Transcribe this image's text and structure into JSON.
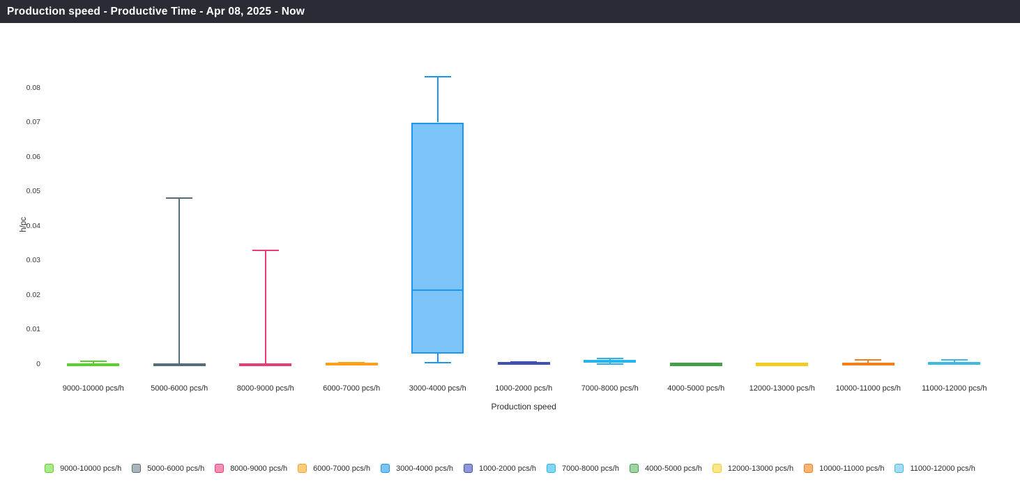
{
  "header": {
    "title": "Production speed - Productive Time - Apr 08, 2025 - Now",
    "bg_color": "#2b2b35",
    "text_color": "#ffffff"
  },
  "chart_data": {
    "type": "boxplot",
    "title": "",
    "xlabel": "Production speed",
    "ylabel": "h/pc",
    "ylim": [
      0,
      0.088
    ],
    "grid": false,
    "legend_position": "bottom",
    "yticks": [
      {
        "v": 0,
        "label": "0"
      },
      {
        "v": 0.01,
        "label": "0.01"
      },
      {
        "v": 0.02,
        "label": "0.02"
      },
      {
        "v": 0.03,
        "label": "0.03"
      },
      {
        "v": 0.04,
        "label": "0.04"
      },
      {
        "v": 0.05,
        "label": "0.05"
      },
      {
        "v": 0.06,
        "label": "0.06"
      },
      {
        "v": 0.07,
        "label": "0.07"
      },
      {
        "v": 0.08,
        "label": "0.08"
      }
    ],
    "categories": [
      "9000-10000 pcs/h",
      "5000-6000 pcs/h",
      "8000-9000 pcs/h",
      "6000-7000 pcs/h",
      "3000-4000 pcs/h",
      "1000-2000 pcs/h",
      "7000-8000 pcs/h",
      "4000-5000 pcs/h",
      "12000-13000 pcs/h",
      "10000-11000 pcs/h",
      "11000-12000 pcs/h"
    ],
    "series": [
      {
        "name": "9000-10000 pcs/h",
        "color": "#58d02c",
        "fill": "#abe98b",
        "low": 0,
        "q1": 0,
        "median": 0.0001,
        "q3": 0.0003,
        "high": 0.0008
      },
      {
        "name": "5000-6000 pcs/h",
        "color": "#546e7a",
        "fill": "#aab6bc",
        "low": 0,
        "q1": 0,
        "median": 0.0001,
        "q3": 0.0002,
        "high": 0.048
      },
      {
        "name": "8000-9000 pcs/h",
        "color": "#e93d75",
        "fill": "#f490b5",
        "low": 0,
        "q1": 0,
        "median": 0.0001,
        "q3": 0.0002,
        "high": 0.033
      },
      {
        "name": "6000-7000 pcs/h",
        "color": "#faa019",
        "fill": "#fcce7e",
        "low": 0.0001,
        "q1": 0.0002,
        "median": 0.0003,
        "q3": 0.0004,
        "high": 0.0005
      },
      {
        "name": "3000-4000 pcs/h",
        "color": "#1c96ee",
        "fill": "#7cc4f8",
        "low": 0.0005,
        "q1": 0.003,
        "median": 0.0215,
        "q3": 0.07,
        "high": 0.0833
      },
      {
        "name": "1000-2000 pcs/h",
        "color": "#3f51b5",
        "fill": "#8e99d8",
        "low": 0.0001,
        "q1": 0.0002,
        "median": 0.0004,
        "q3": 0.0006,
        "high": 0.0007
      },
      {
        "name": "7000-8000 pcs/h",
        "color": "#27b3ed",
        "fill": "#83d7f6",
        "low": 0.0001,
        "q1": 0.0004,
        "median": 0.0008,
        "q3": 0.0012,
        "high": 0.0016
      },
      {
        "name": "4000-5000 pcs/h",
        "color": "#43a047",
        "fill": "#a1d4a3",
        "low": 0.0001,
        "q1": 0.0001,
        "median": 0.0002,
        "q3": 0.0002,
        "high": 0.0003
      },
      {
        "name": "12000-13000 pcs/h",
        "color": "#f3cd1e",
        "fill": "#f9e78c",
        "low": 0.0001,
        "q1": 0.0001,
        "median": 0.0002,
        "q3": 0.0002,
        "high": 0.0003
      },
      {
        "name": "10000-11000 pcs/h",
        "color": "#f57c17",
        "fill": "#fab577",
        "low": 0,
        "q1": 0.0001,
        "median": 0.0002,
        "q3": 0.0004,
        "high": 0.0012
      },
      {
        "name": "11000-12000 pcs/h",
        "color": "#3fb8e2",
        "fill": "#a5def2",
        "low": 0,
        "q1": 0.0002,
        "median": 0.0004,
        "q3": 0.0006,
        "high": 0.0012
      }
    ]
  }
}
